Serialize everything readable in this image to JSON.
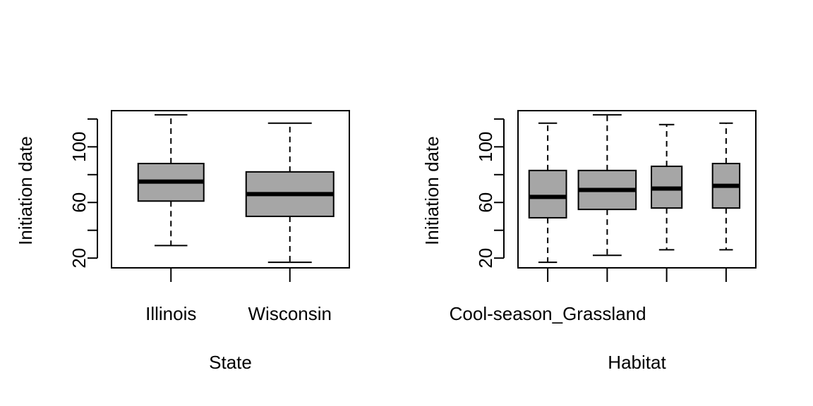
{
  "chart_data": [
    {
      "type": "boxplot",
      "xlabel": "State",
      "ylabel": "Initiation date",
      "ylim": [
        13,
        126
      ],
      "yticks": [
        20,
        40,
        60,
        80,
        100,
        120
      ],
      "ytick_labels": [
        "20",
        "",
        "60",
        "",
        "100",
        ""
      ],
      "categories": [
        "Illinois",
        "Wisconsin"
      ],
      "category_labels_shown": [
        "Illinois",
        "Wisconsin"
      ],
      "box_fill": "#a6a6a6",
      "boxes": [
        {
          "name": "Illinois",
          "whisker_low": 29,
          "q1": 61,
          "median": 75,
          "q3": 88,
          "whisker_high": 123,
          "width": 0.75
        },
        {
          "name": "Wisconsin",
          "whisker_low": 17,
          "q1": 50,
          "median": 66,
          "q3": 82,
          "whisker_high": 117,
          "width": 1.0
        }
      ]
    },
    {
      "type": "boxplot",
      "xlabel": "Habitat",
      "ylabel": "Initiation date",
      "ylim": [
        13,
        126
      ],
      "yticks": [
        20,
        40,
        60,
        80,
        100,
        120
      ],
      "ytick_labels": [
        "20",
        "",
        "60",
        "",
        "100",
        ""
      ],
      "categories": [
        "Cool-season_Grassland",
        "",
        "",
        ""
      ],
      "category_labels_shown": [
        "Cool-season_Grassland",
        "",
        "",
        ""
      ],
      "box_fill": "#a6a6a6",
      "boxes": [
        {
          "name": "Cool-season_Grassland",
          "whisker_low": 17,
          "q1": 49,
          "median": 64,
          "q3": 83,
          "whisker_high": 117,
          "width": 0.55
        },
        {
          "name": "",
          "whisker_low": 22,
          "q1": 55,
          "median": 69,
          "q3": 83,
          "whisker_high": 123,
          "width": 0.85
        },
        {
          "name": "",
          "whisker_low": 26,
          "q1": 56,
          "median": 70,
          "q3": 86,
          "whisker_high": 116,
          "width": 0.45
        },
        {
          "name": "",
          "whisker_low": 26,
          "q1": 56,
          "median": 72,
          "q3": 88,
          "whisker_high": 117,
          "width": 0.4
        }
      ]
    }
  ]
}
